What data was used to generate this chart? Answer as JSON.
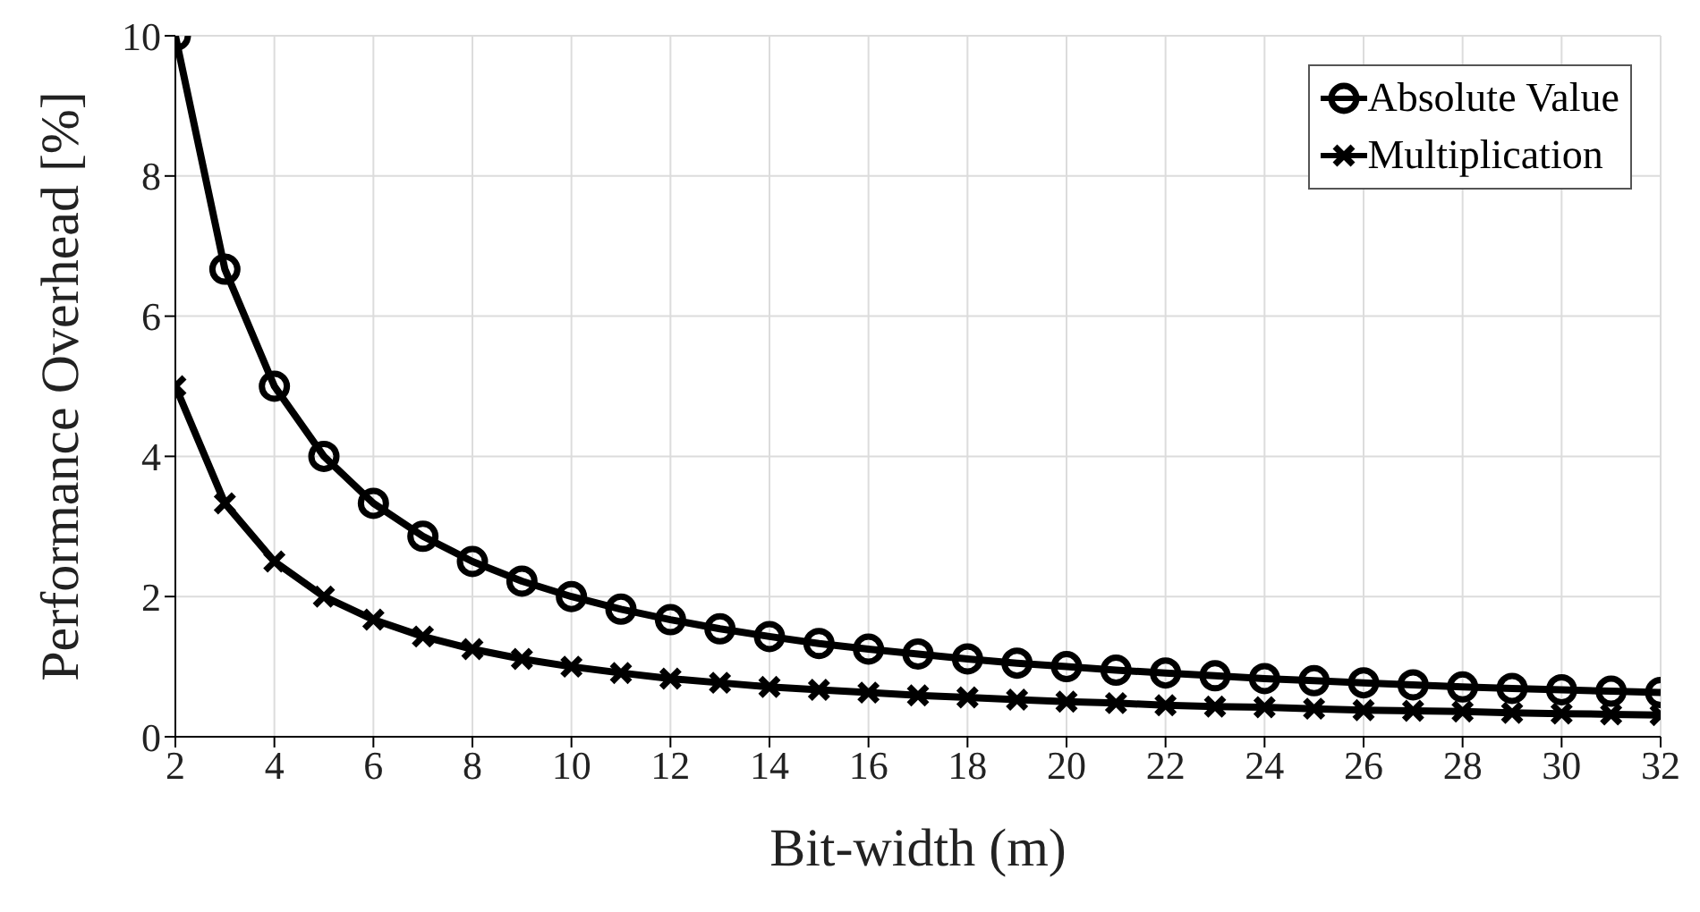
{
  "chart_data": {
    "type": "line",
    "xlabel": "Bit-width (m)",
    "ylabel": "Performance Overhead [%]",
    "x": [
      2,
      3,
      4,
      5,
      6,
      7,
      8,
      9,
      10,
      11,
      12,
      13,
      14,
      15,
      16,
      17,
      18,
      19,
      20,
      21,
      22,
      23,
      24,
      25,
      26,
      27,
      28,
      29,
      30,
      31,
      32
    ],
    "series": [
      {
        "name": "Absolute Value",
        "color": "#000000",
        "marker": "circle",
        "values": [
          10,
          6.67,
          5,
          4,
          3.33,
          2.86,
          2.5,
          2.22,
          2,
          1.82,
          1.67,
          1.54,
          1.43,
          1.33,
          1.25,
          1.18,
          1.11,
          1.05,
          1,
          0.95,
          0.91,
          0.87,
          0.83,
          0.8,
          0.77,
          0.74,
          0.71,
          0.69,
          0.67,
          0.65,
          0.63
        ]
      },
      {
        "name": "Multiplication",
        "color": "#000000",
        "marker": "cross",
        "values": [
          5,
          3.33,
          2.5,
          2,
          1.67,
          1.43,
          1.25,
          1.11,
          1,
          0.91,
          0.83,
          0.77,
          0.71,
          0.67,
          0.63,
          0.59,
          0.56,
          0.53,
          0.5,
          0.48,
          0.45,
          0.43,
          0.42,
          0.4,
          0.38,
          0.37,
          0.36,
          0.34,
          0.33,
          0.32,
          0.31
        ]
      }
    ],
    "xlim": [
      2,
      32
    ],
    "xticks": [
      2,
      4,
      6,
      8,
      10,
      12,
      14,
      16,
      18,
      20,
      22,
      24,
      26,
      28,
      30,
      32
    ],
    "ylim": [
      0,
      10
    ],
    "yticks": [
      0,
      2,
      4,
      6,
      8,
      10
    ],
    "grid": true,
    "legend": "top right",
    "line_style": "solid"
  }
}
